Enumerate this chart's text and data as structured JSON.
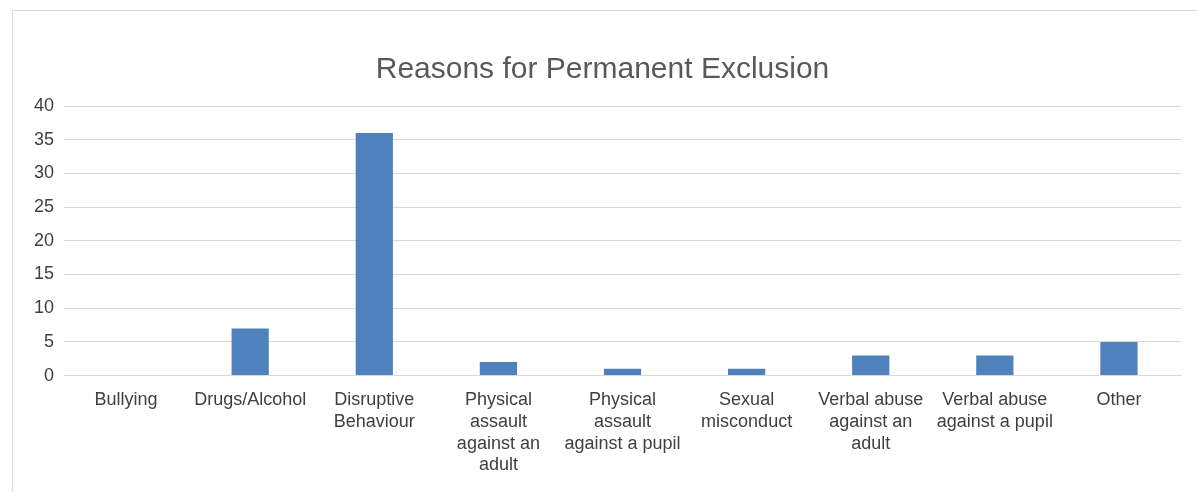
{
  "chart_data": {
    "type": "bar",
    "title": "Reasons for Permanent Exclusion",
    "categories": [
      "Bullying",
      "Drugs/Alcohol",
      "Disruptive Behaviour",
      "Physical assault against an adult",
      "Physical assault against a pupil",
      "Sexual misconduct",
      "Verbal abuse against an adult",
      "Verbal abuse against a pupil",
      "Other"
    ],
    "values": [
      0,
      7,
      36,
      2,
      1,
      1,
      3,
      3,
      5
    ],
    "color": "#4f81bd",
    "ylim": [
      0,
      40
    ],
    "yticks": [
      0,
      5,
      10,
      15,
      20,
      25,
      30,
      35,
      40
    ],
    "grid": "y",
    "legend": false
  }
}
